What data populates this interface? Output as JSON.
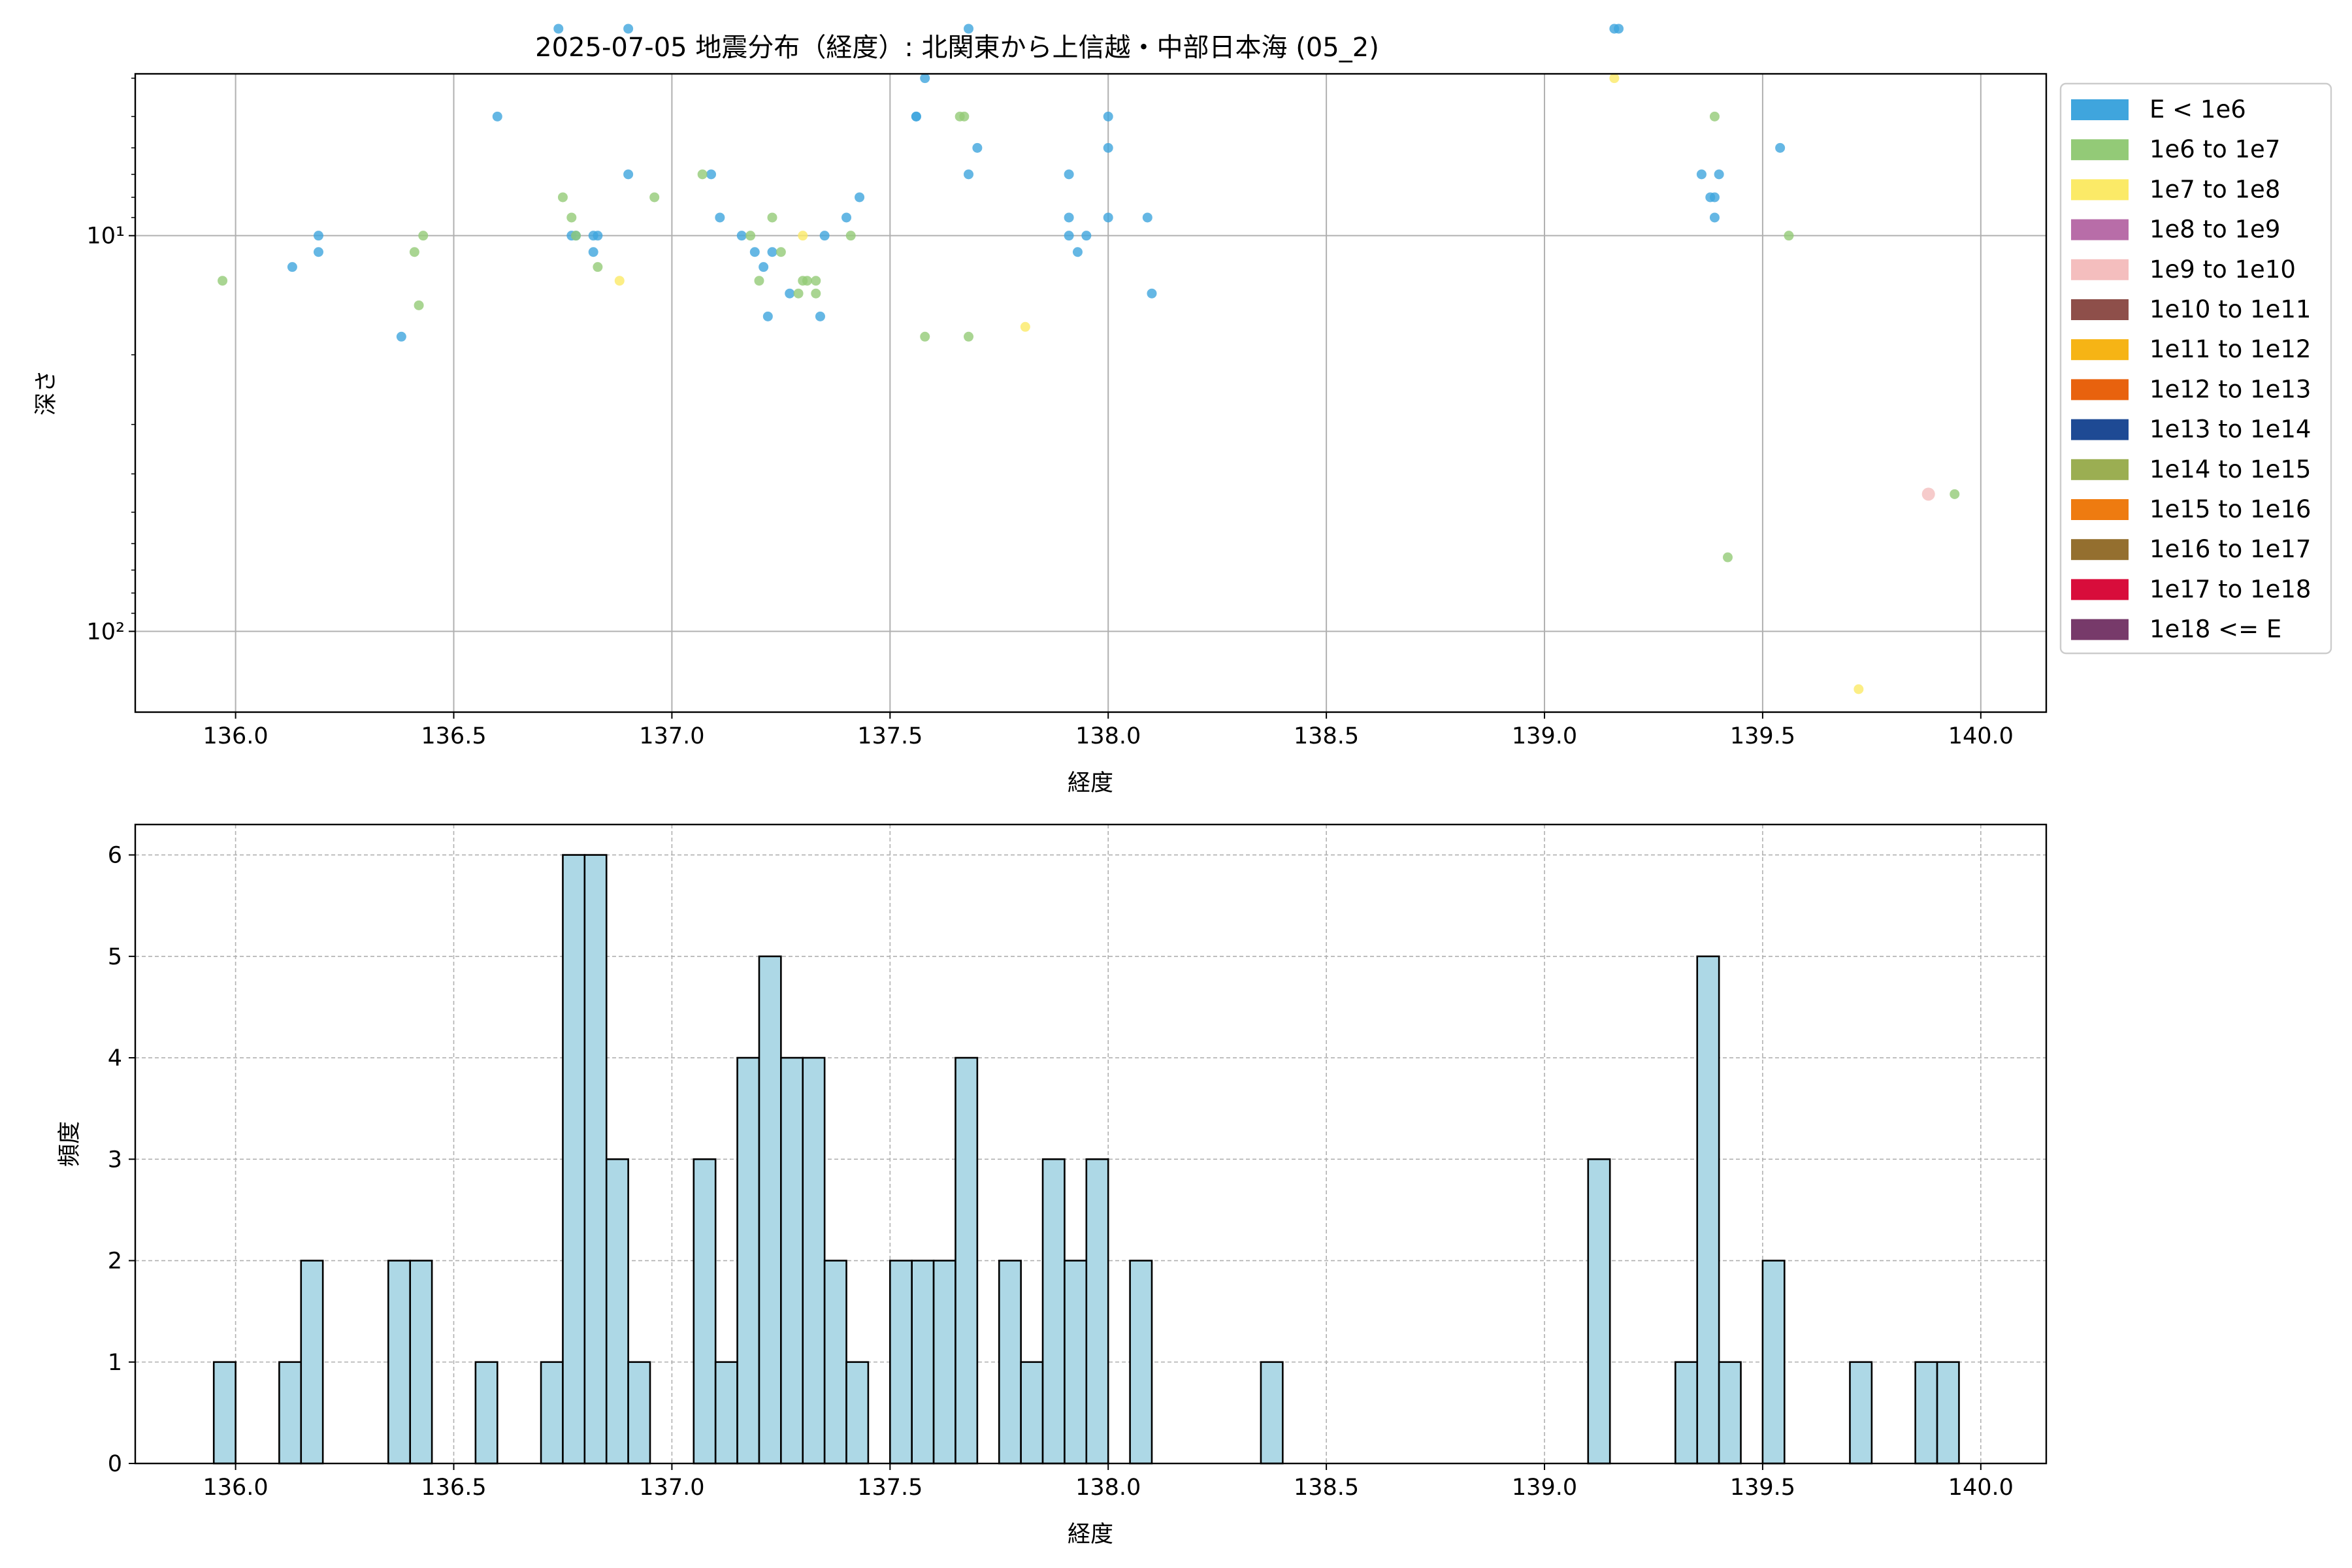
{
  "figure_title": "2025-07-05 地震分布（経度）: 北関東から上信越・中部日本海 (05_2)",
  "legend": [
    {
      "label": "E < 1e6",
      "color": "#3fa5dd"
    },
    {
      "label": "1e6 to 1e7",
      "color": "#93ca77"
    },
    {
      "label": "1e7 to 1e8",
      "color": "#fbea67"
    },
    {
      "label": "1e8 to 1e9",
      "color": "#b86da8"
    },
    {
      "label": "1e9 to 1e10",
      "color": "#f4bebe"
    },
    {
      "label": "1e10 to 1e11",
      "color": "#8e4f4a"
    },
    {
      "label": "1e11 to 1e12",
      "color": "#f6b415"
    },
    {
      "label": "1e12 to 1e13",
      "color": "#e8620e"
    },
    {
      "label": "1e13 to 1e14",
      "color": "#1e4a94"
    },
    {
      "label": "1e14 to 1e15",
      "color": "#9bae52"
    },
    {
      "label": "1e15 to 1e16",
      "color": "#ee7b10"
    },
    {
      "label": "1e16 to 1e17",
      "color": "#946f2f"
    },
    {
      "label": "1e17 to 1e18",
      "color": "#d80d3b"
    },
    {
      "label": "1e18 <= E",
      "color": "#773a6a"
    }
  ],
  "chart_data": [
    {
      "type": "scatter",
      "xlabel": "経度",
      "ylabel": "深さ",
      "xlim": [
        135.77,
        140.15
      ],
      "ylim_depth": [
        3.9,
        160
      ],
      "yscale": "log",
      "y_inverted": true,
      "xticks": [
        "136.0",
        "136.5",
        "137.0",
        "137.5",
        "138.0",
        "138.5",
        "139.0",
        "139.5",
        "140.0"
      ],
      "yticks": [
        {
          "value": 10,
          "label": "10¹"
        },
        {
          "value": 100,
          "label": "10²"
        }
      ],
      "grid": true,
      "legend_position": "outside-right",
      "series": [
        {
          "name": "E < 1e6",
          "color": "#3fa5dd",
          "points": [
            [
              136.13,
              12
            ],
            [
              136.19,
              11
            ],
            [
              136.19,
              10
            ],
            [
              136.38,
              18
            ],
            [
              136.6,
              5
            ],
            [
              136.74,
              3
            ],
            [
              136.77,
              10
            ],
            [
              136.78,
              10
            ],
            [
              136.82,
              10
            ],
            [
              136.82,
              11
            ],
            [
              136.83,
              10
            ],
            [
              136.9,
              3
            ],
            [
              136.9,
              7
            ],
            [
              137.09,
              7
            ],
            [
              137.11,
              9
            ],
            [
              137.16,
              10
            ],
            [
              137.19,
              11
            ],
            [
              137.21,
              12
            ],
            [
              137.22,
              16
            ],
            [
              137.23,
              11
            ],
            [
              137.27,
              14
            ],
            [
              137.34,
              16
            ],
            [
              137.35,
              10
            ],
            [
              137.4,
              9
            ],
            [
              137.43,
              8
            ],
            [
              137.56,
              5
            ],
            [
              137.56,
              5
            ],
            [
              137.58,
              4
            ],
            [
              137.68,
              3
            ],
            [
              137.68,
              7
            ],
            [
              137.7,
              6
            ],
            [
              137.91,
              7
            ],
            [
              137.91,
              9
            ],
            [
              137.91,
              10
            ],
            [
              137.93,
              11
            ],
            [
              137.95,
              10
            ],
            [
              138.0,
              5
            ],
            [
              138.0,
              6
            ],
            [
              138.0,
              9
            ],
            [
              138.09,
              9
            ],
            [
              138.1,
              14
            ],
            [
              139.16,
              3
            ],
            [
              139.17,
              3
            ],
            [
              139.36,
              7
            ],
            [
              139.38,
              8
            ],
            [
              139.39,
              8
            ],
            [
              139.39,
              9
            ],
            [
              139.4,
              7
            ],
            [
              139.54,
              6
            ]
          ]
        },
        {
          "name": "1e6 to 1e7",
          "color": "#93ca77",
          "points": [
            [
              135.97,
              13
            ],
            [
              136.41,
              11
            ],
            [
              136.42,
              15
            ],
            [
              136.43,
              10
            ],
            [
              136.75,
              8
            ],
            [
              136.77,
              9
            ],
            [
              136.78,
              10
            ],
            [
              136.83,
              12
            ],
            [
              136.96,
              8
            ],
            [
              137.07,
              7
            ],
            [
              137.18,
              10
            ],
            [
              137.2,
              13
            ],
            [
              137.23,
              9
            ],
            [
              137.25,
              11
            ],
            [
              137.29,
              14
            ],
            [
              137.3,
              13
            ],
            [
              137.31,
              13
            ],
            [
              137.33,
              13
            ],
            [
              137.33,
              14
            ],
            [
              137.41,
              10
            ],
            [
              137.58,
              18
            ],
            [
              137.66,
              5
            ],
            [
              137.67,
              5
            ],
            [
              137.68,
              18
            ],
            [
              139.39,
              5
            ],
            [
              139.42,
              65
            ],
            [
              139.56,
              10
            ],
            [
              139.94,
              45
            ]
          ]
        },
        {
          "name": "1e7 to 1e8",
          "color": "#fbea67",
          "points": [
            [
              136.88,
              13
            ],
            [
              137.3,
              10
            ],
            [
              137.81,
              17
            ],
            [
              139.16,
              4
            ],
            [
              139.72,
              140
            ]
          ]
        },
        {
          "name": "1e9 to 1e10",
          "color": "#f4bebe",
          "points": [
            [
              139.88,
              45
            ]
          ]
        }
      ]
    },
    {
      "type": "bar",
      "xlabel": "経度",
      "ylabel": "頻度",
      "xlim": [
        135.77,
        140.15
      ],
      "ylim": [
        0,
        6.3
      ],
      "xticks": [
        "136.0",
        "136.5",
        "137.0",
        "137.5",
        "138.0",
        "138.5",
        "139.0",
        "139.5",
        "140.0"
      ],
      "yticks": [
        "0",
        "1",
        "2",
        "3",
        "4",
        "5",
        "6"
      ],
      "grid": true,
      "bar_color": "#add8e6",
      "bin_width": 0.05,
      "bins": [
        [
          135.95,
          1
        ],
        [
          136.1,
          1
        ],
        [
          136.15,
          2
        ],
        [
          136.35,
          2
        ],
        [
          136.4,
          2
        ],
        [
          136.55,
          1
        ],
        [
          136.7,
          1
        ],
        [
          136.75,
          6
        ],
        [
          136.8,
          6
        ],
        [
          136.85,
          3
        ],
        [
          136.9,
          1
        ],
        [
          137.05,
          3
        ],
        [
          137.1,
          1
        ],
        [
          137.15,
          4
        ],
        [
          137.2,
          5
        ],
        [
          137.25,
          4
        ],
        [
          137.3,
          4
        ],
        [
          137.35,
          2
        ],
        [
          137.4,
          1
        ],
        [
          137.5,
          2
        ],
        [
          137.55,
          2
        ],
        [
          137.6,
          2
        ],
        [
          137.65,
          4
        ],
        [
          137.75,
          2
        ],
        [
          137.8,
          1
        ],
        [
          137.85,
          3
        ],
        [
          137.9,
          2
        ],
        [
          137.95,
          3
        ],
        [
          138.05,
          2
        ],
        [
          138.35,
          1
        ],
        [
          139.1,
          3
        ],
        [
          139.3,
          1
        ],
        [
          139.35,
          5
        ],
        [
          139.4,
          1
        ],
        [
          139.5,
          2
        ],
        [
          139.7,
          1
        ],
        [
          139.85,
          1
        ],
        [
          139.9,
          1
        ]
      ]
    }
  ]
}
